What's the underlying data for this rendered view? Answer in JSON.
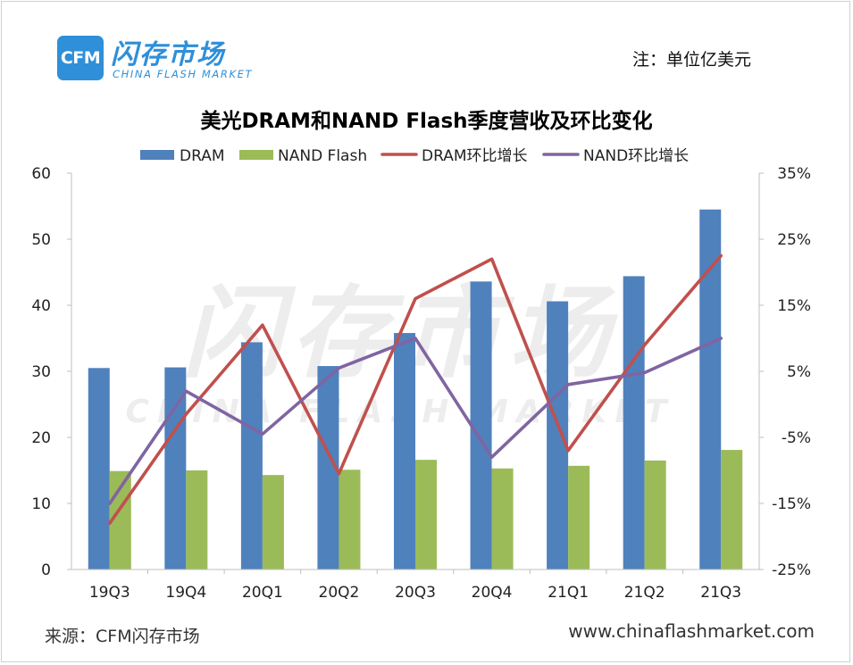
{
  "header": {
    "logo_mark": "CFM",
    "logo_cn": "闪存市场",
    "logo_en": "CHINA FLASH MARKET",
    "unit_note": "注：单位亿美元"
  },
  "footer": {
    "source": "来源：CFM闪存市场",
    "website": "www.chinaflashmarket.com"
  },
  "colors": {
    "dram_bar": "#4f81bd",
    "nand_bar": "#9bbb59",
    "dram_line": "#c0504d",
    "nand_line": "#8064a2",
    "axis": "#bfbfbf"
  },
  "chart_data": {
    "type": "bar",
    "title": "美光DRAM和NAND Flash季度营收及环比变化",
    "categories": [
      "19Q3",
      "19Q4",
      "20Q1",
      "20Q2",
      "20Q3",
      "20Q4",
      "21Q1",
      "21Q2",
      "21Q3"
    ],
    "series": [
      {
        "name": "DRAM",
        "type": "bar",
        "axis": "left",
        "values": [
          30.5,
          30.6,
          34.4,
          30.8,
          35.8,
          43.6,
          40.6,
          44.4,
          54.5
        ]
      },
      {
        "name": "NAND Flash",
        "type": "bar",
        "axis": "left",
        "values": [
          14.9,
          15.0,
          14.3,
          15.1,
          16.6,
          15.3,
          15.7,
          16.5,
          18.1
        ]
      },
      {
        "name": "DRAM环比增长",
        "type": "line",
        "axis": "right",
        "values": [
          -18.0,
          -1.5,
          12.0,
          -10.5,
          16.0,
          22.0,
          -7.0,
          9.0,
          22.5
        ]
      },
      {
        "name": "NAND环比增长",
        "type": "line",
        "axis": "right",
        "values": [
          -15.0,
          2.0,
          -4.5,
          5.5,
          10.0,
          -8.0,
          3.0,
          4.8,
          10.0
        ]
      }
    ],
    "left_axis": {
      "min": 0,
      "max": 60,
      "ticks": [
        "0",
        "10",
        "20",
        "30",
        "40",
        "50",
        "60"
      ]
    },
    "right_axis": {
      "min": -25,
      "max": 35,
      "ticks": [
        "-25%",
        "-15%",
        "-5%",
        "5%",
        "15%",
        "25%",
        "35%"
      ]
    },
    "legend_position": "top-center",
    "grid": false,
    "watermark": {
      "cn": "闪存市场",
      "en": "CHINA FLASH MARKET"
    }
  }
}
